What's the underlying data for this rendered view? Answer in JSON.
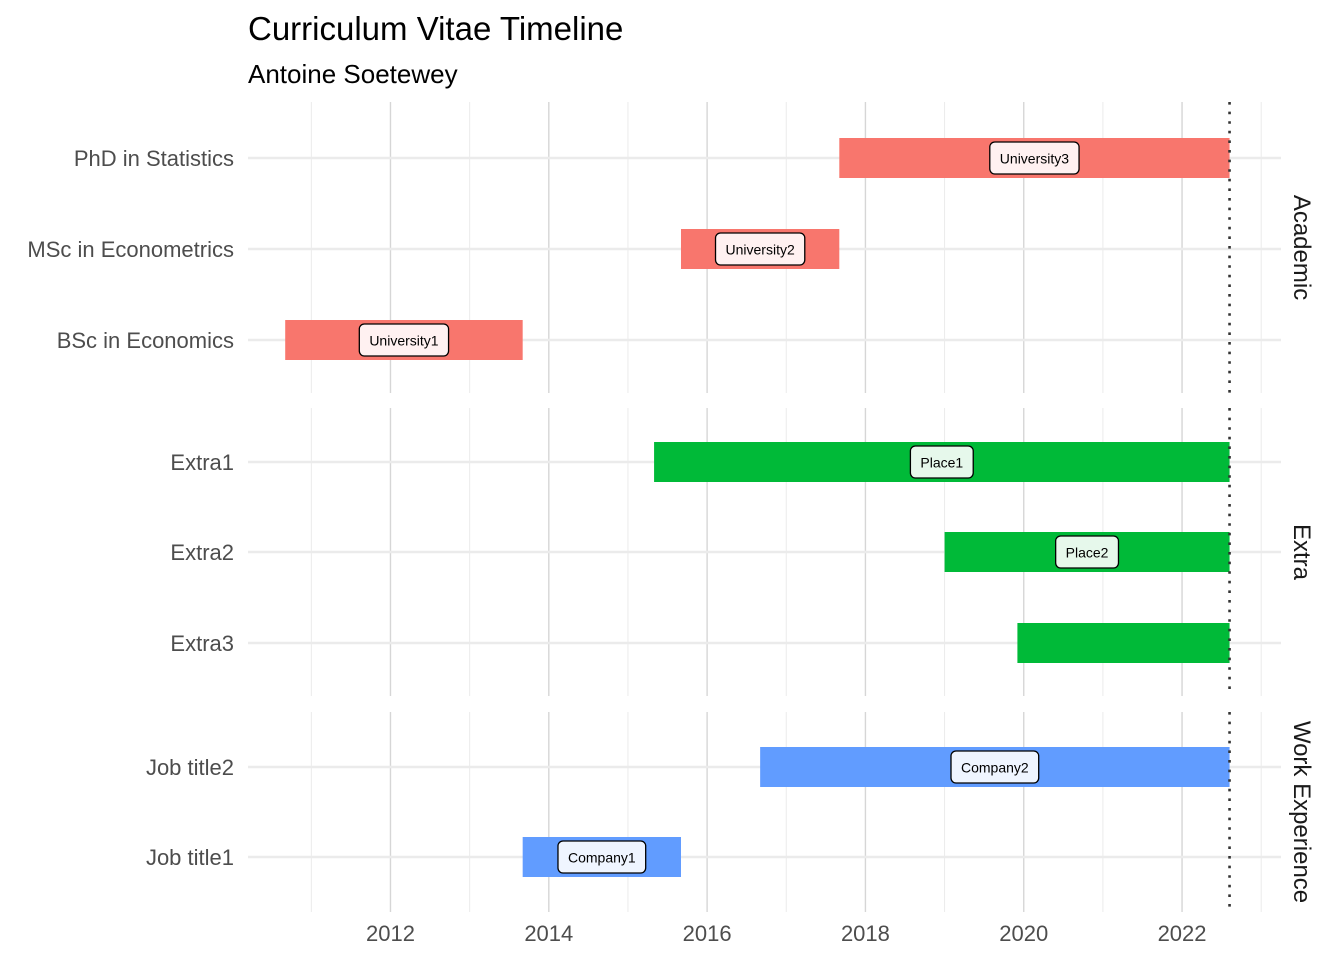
{
  "chart_data": {
    "type": "bar",
    "orientation": "horizontal-timeline",
    "title": "Curriculum Vitae Timeline",
    "subtitle": "Antoine Soetewey",
    "xlabel": "",
    "ylabel": "",
    "xlim": [
      2010.2,
      2023.25
    ],
    "x_ticks": [
      "2012",
      "2014",
      "2016",
      "2018",
      "2020",
      "2022"
    ],
    "today": 2022.6,
    "grid": true,
    "legend": "none",
    "colors": {
      "Academic": "#F8766D",
      "Extra": "#00BA38",
      "Work Experience": "#619CFF"
    },
    "facets": [
      {
        "name": "Academic",
        "rows": [
          {
            "label": "PhD in Statistics",
            "start": 2017.67,
            "end": 2022.6,
            "place": "University3"
          },
          {
            "label": "MSc in Econometrics",
            "start": 2015.67,
            "end": 2017.67,
            "place": "University2"
          },
          {
            "label": "BSc in Economics",
            "start": 2010.67,
            "end": 2013.67,
            "place": "University1"
          }
        ]
      },
      {
        "name": "Extra",
        "rows": [
          {
            "label": "Extra1",
            "start": 2015.33,
            "end": 2022.6,
            "place": "Place1"
          },
          {
            "label": "Extra2",
            "start": 2019.0,
            "end": 2022.6,
            "place": "Place2"
          },
          {
            "label": "Extra3",
            "start": 2019.92,
            "end": 2022.6,
            "place": ""
          }
        ]
      },
      {
        "name": "Work Experience",
        "rows": [
          {
            "label": "Job title2",
            "start": 2016.67,
            "end": 2022.6,
            "place": "Company2"
          },
          {
            "label": "Job title1",
            "start": 2013.67,
            "end": 2015.67,
            "place": "Company1"
          }
        ]
      }
    ]
  }
}
